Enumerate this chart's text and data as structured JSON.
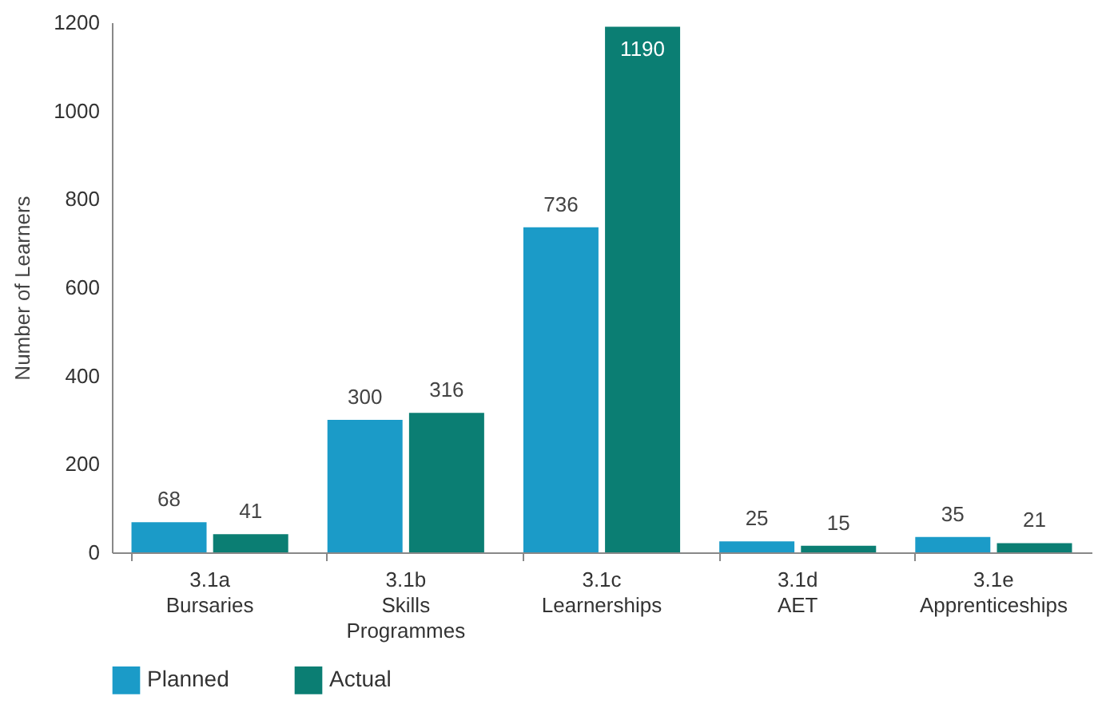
{
  "chart_data": {
    "type": "bar",
    "ylabel": "Number of Learners",
    "categories": [
      "3.1a\nBursaries",
      "3.1b\nSkills\nProgrammes",
      "3.1c\nLearnerships",
      "3.1d\nAET",
      "3.1e\nApprenticeships"
    ],
    "series": [
      {
        "name": "Planned",
        "color": "#1b9bc8",
        "values": [
          68,
          300,
          736,
          25,
          35
        ]
      },
      {
        "name": "Actual",
        "color": "#0b7e73",
        "values": [
          41,
          316,
          1190,
          15,
          21
        ]
      }
    ],
    "ylim": [
      0,
      1200
    ],
    "yticks": [
      0,
      200,
      400,
      600,
      800,
      1000,
      1200
    ],
    "grid": false,
    "legend": "bottom",
    "data_labels": true
  }
}
